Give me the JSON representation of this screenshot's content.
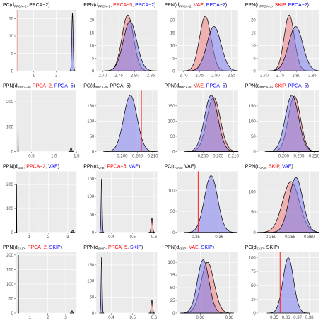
{
  "colors": {
    "panel_bg": "#ebebeb",
    "grid_major": "#ffffff",
    "grid_minor": "#f3f3f3",
    "red_fill": "#f08080",
    "blue_fill": "#8080f0",
    "purple_fill": "#8a4aa6",
    "red_line": "#ff2020",
    "red_text": "#ff0000",
    "blue_text": "#0000ff",
    "curve": "#000000"
  },
  "panels": [
    {
      "title": [
        [
          "PC(d",
          "#000"
        ],
        [
          "PPCA−2",
          "#000",
          "sub"
        ],
        [
          ", PPCA−2)",
          "#000"
        ]
      ],
      "type": "pc",
      "xlim": [
        0.2,
        2.9
      ],
      "ylim": [
        0,
        17.5
      ],
      "xticks": [
        1,
        2
      ],
      "yticks": [
        0,
        5,
        10,
        15
      ],
      "obs": 0.3,
      "a": {
        "mean": 2.72,
        "sd": 0.03,
        "peak": 16.5
      }
    },
    {
      "title": [
        [
          "PPN(d",
          "#000"
        ],
        [
          "PPCA−2",
          "#000",
          "sub"
        ],
        [
          ", ",
          "#000"
        ],
        [
          "PPCA−5",
          "#ff0000"
        ],
        [
          ", ",
          "#000"
        ],
        [
          "PPCA−2",
          "#0000ff"
        ],
        [
          ")",
          "#000"
        ]
      ],
      "type": "ppn",
      "xlim": [
        2.68,
        2.87
      ],
      "ylim": [
        0,
        24
      ],
      "xticks": [
        2.7,
        2.75,
        2.8,
        2.85
      ],
      "xfmt": 2,
      "yticks": [
        0,
        5,
        10,
        15,
        20
      ],
      "a": {
        "mean": 2.778,
        "sd": 0.018,
        "peak": 22
      },
      "b": {
        "mean": 2.785,
        "sd": 0.021,
        "peak": 19.5
      }
    },
    {
      "title": [
        [
          "PPN(d",
          "#000"
        ],
        [
          "PPCA−2",
          "#000",
          "sub"
        ],
        [
          ", ",
          "#000"
        ],
        [
          "VAE",
          "#ff0000"
        ],
        [
          ", ",
          "#000"
        ],
        [
          "PPCA−2",
          "#0000ff"
        ],
        [
          ")",
          "#000"
        ]
      ],
      "type": "ppn",
      "xlim": [
        2.68,
        2.87
      ],
      "ylim": [
        0,
        24
      ],
      "xticks": [
        2.7,
        2.75,
        2.8,
        2.85
      ],
      "xfmt": 2,
      "yticks": [
        0,
        5,
        10,
        15,
        20
      ],
      "a": {
        "mean": 2.768,
        "sd": 0.018,
        "peak": 21.5
      },
      "b": {
        "mean": 2.795,
        "sd": 0.022,
        "peak": 17.5
      }
    },
    {
      "title": [
        [
          "PPN(d",
          "#000"
        ],
        [
          "PPCA−2",
          "#000",
          "sub"
        ],
        [
          ", ",
          "#000"
        ],
        [
          "SKIP",
          "#ff0000"
        ],
        [
          ", ",
          "#000"
        ],
        [
          "PPCA−2",
          "#0000ff"
        ],
        [
          ")",
          "#000"
        ]
      ],
      "type": "ppn",
      "xlim": [
        2.68,
        2.87
      ],
      "ylim": [
        0,
        24
      ],
      "xticks": [
        2.7,
        2.75,
        2.8,
        2.85
      ],
      "xfmt": 2,
      "yticks": [
        0,
        5,
        10,
        15,
        20
      ],
      "a": {
        "mean": 2.778,
        "sd": 0.016,
        "peak": 22
      },
      "b": {
        "mean": 2.798,
        "sd": 0.022,
        "peak": 17.5
      }
    },
    {
      "title": [
        [
          "PPN(d",
          "#000"
        ],
        [
          "PPCA−5",
          "#000",
          "sub"
        ],
        [
          ", ",
          "#000"
        ],
        [
          "PPCA−2",
          "#ff0000"
        ],
        [
          ", ",
          "#000"
        ],
        [
          "PPCA−5",
          "#0000ff"
        ],
        [
          ")",
          "#000"
        ]
      ],
      "type": "ppn",
      "xlim": [
        0.15,
        1.5
      ],
      "ylim": [
        0,
        245
      ],
      "xticks": [
        0.5,
        1.0,
        1.5
      ],
      "xfmt": 1,
      "yticks": [
        0,
        100,
        200
      ],
      "a": {
        "mean": 1.38,
        "sd": 0.015,
        "peak": 16
      },
      "b": {
        "mean": 0.205,
        "sd": 0.002,
        "peak": 200
      }
    },
    {
      "title": [
        [
          "PC(d",
          "#000"
        ],
        [
          "PPCA−5",
          "#000",
          "sub"
        ],
        [
          ", PPCA−5)",
          "#000"
        ]
      ],
      "type": "pc",
      "xlim": [
        0.1915,
        0.2115
      ],
      "ylim": [
        0,
        200
      ],
      "xticks": [
        0.2,
        0.205,
        0.21
      ],
      "xfmt": 3,
      "yticks": [
        0,
        50,
        100,
        150
      ],
      "obs": 0.2063,
      "a": {
        "mean": 0.2027,
        "sd": 0.0022,
        "peak": 185
      }
    },
    {
      "title": [
        [
          "PPN(d",
          "#000"
        ],
        [
          "PPCA−5",
          "#000",
          "sub"
        ],
        [
          ", ",
          "#000"
        ],
        [
          "VAE",
          "#ff0000"
        ],
        [
          ", ",
          "#000"
        ],
        [
          "PPCA−5",
          "#0000ff"
        ],
        [
          ")",
          "#000"
        ]
      ],
      "type": "ppn",
      "xlim": [
        0.1915,
        0.2115
      ],
      "ylim": [
        0,
        200
      ],
      "xticks": [
        0.2,
        0.205,
        0.21
      ],
      "xfmt": 3,
      "yticks": [
        0,
        50,
        100,
        150
      ],
      "a": {
        "mean": 0.2035,
        "sd": 0.0022,
        "peak": 178
      },
      "b": {
        "mean": 0.2027,
        "sd": 0.0022,
        "peak": 185
      }
    },
    {
      "title": [
        [
          "PPN(d",
          "#000"
        ],
        [
          "PPCA−5",
          "#000",
          "sub"
        ],
        [
          ", ",
          "#000"
        ],
        [
          "SKIP",
          "#ff0000"
        ],
        [
          ", ",
          "#000"
        ],
        [
          "PPCA−5",
          "#0000ff"
        ],
        [
          ")",
          "#000"
        ]
      ],
      "type": "ppn",
      "xlim": [
        0.1915,
        0.2115
      ],
      "ylim": [
        0,
        200
      ],
      "xticks": [
        0.2,
        0.205,
        0.21
      ],
      "xfmt": 3,
      "yticks": [
        0,
        50,
        100,
        150
      ],
      "a": {
        "mean": 0.2035,
        "sd": 0.002,
        "peak": 182
      },
      "b": {
        "mean": 0.2027,
        "sd": 0.0022,
        "peak": 185
      }
    },
    {
      "title": [
        [
          "PPN(d",
          "#000"
        ],
        [
          "VAE",
          "#000",
          "sub"
        ],
        [
          ", ",
          "#000"
        ],
        [
          "PPCA−2",
          "#ff0000"
        ],
        [
          ", ",
          "#000"
        ],
        [
          "VAE",
          "#0000ff"
        ],
        [
          ")",
          "#000"
        ]
      ],
      "type": "ppn",
      "xlim": [
        0.3,
        3.45
      ],
      "ylim": [
        0,
        255
      ],
      "xticks": [
        1,
        2,
        3
      ],
      "yticks": [
        0,
        100,
        200
      ],
      "a": {
        "mean": 3.25,
        "sd": 0.03,
        "peak": 8
      },
      "b": {
        "mean": 0.355,
        "sd": 0.003,
        "peak": 200
      }
    },
    {
      "title": [
        [
          "PPN(d",
          "#000"
        ],
        [
          "VAE",
          "#000",
          "sub"
        ],
        [
          ", ",
          "#000"
        ],
        [
          "PPCA−5",
          "#ff0000"
        ],
        [
          ", ",
          "#000"
        ],
        [
          "VAE",
          "#0000ff"
        ],
        [
          ")",
          "#000"
        ]
      ],
      "type": "ppn",
      "xlim": [
        0.33,
        0.615
      ],
      "ylim": [
        0,
        170
      ],
      "xticks": [
        0.4,
        0.5,
        0.6
      ],
      "xfmt": 1,
      "yticks": [
        0,
        50,
        100,
        150
      ],
      "a": {
        "mean": 0.59,
        "sd": 0.0035,
        "peak": 40
      },
      "b": {
        "mean": 0.355,
        "sd": 0.0025,
        "peak": 150
      }
    },
    {
      "title": [
        [
          "PC(d",
          "#000"
        ],
        [
          "VAE",
          "#000",
          "sub"
        ],
        [
          ", VAE)",
          "#000"
        ]
      ],
      "type": "pc",
      "xlim": [
        0.342,
        0.368
      ],
      "ylim": [
        0,
        145
      ],
      "xticks": [
        0.35,
        0.36
      ],
      "xfmt": 2,
      "yticks": [
        0,
        50,
        100
      ],
      "obs": 0.351,
      "a": {
        "mean": 0.3565,
        "sd": 0.0028,
        "peak": 135
      }
    },
    {
      "title": [
        [
          "PPN(d",
          "#000"
        ],
        [
          "VAE",
          "#000",
          "sub"
        ],
        [
          ", ",
          "#000"
        ],
        [
          "SKIP",
          "#ff0000"
        ],
        [
          ", ",
          "#000"
        ],
        [
          "VAE",
          "#0000ff"
        ],
        [
          ")",
          "#000"
        ]
      ],
      "type": "ppn",
      "xlim": [
        0.3465,
        0.3625
      ],
      "ylim": [
        0,
        150
      ],
      "xticks": [
        0.35,
        0.355,
        0.36
      ],
      "xfmt": 3,
      "yticks": [
        0,
        50,
        100
      ],
      "a": {
        "mean": 0.3552,
        "sd": 0.0022,
        "peak": 125
      },
      "b": {
        "mean": 0.3565,
        "sd": 0.0018,
        "peak": 135
      }
    },
    {
      "title": [
        [
          "PPN(d",
          "#000"
        ],
        [
          "SKIP",
          "#000",
          "sub"
        ],
        [
          ", ",
          "#000"
        ],
        [
          "PPCA−2",
          "#ff0000"
        ],
        [
          ", ",
          "#000"
        ],
        [
          "SKIP",
          "#0000ff"
        ],
        [
          ")",
          "#000"
        ]
      ],
      "type": "ppn",
      "xlim": [
        0.2,
        3.6
      ],
      "ylim": [
        0,
        210
      ],
      "xticks": [
        1,
        2,
        3
      ],
      "yticks": [
        0,
        50,
        100,
        150,
        200
      ],
      "a": {
        "mean": 3.35,
        "sd": 0.03,
        "peak": 8
      },
      "b": {
        "mean": 0.36,
        "sd": 0.003,
        "peak": 200
      }
    },
    {
      "title": [
        [
          "PPN(d",
          "#000"
        ],
        [
          "SKIP",
          "#000",
          "sub"
        ],
        [
          ", ",
          "#000"
        ],
        [
          "PPCA−5",
          "#ff0000"
        ],
        [
          ", ",
          "#000"
        ],
        [
          "SKIP",
          "#0000ff"
        ],
        [
          ")",
          "#000"
        ]
      ],
      "type": "ppn",
      "xlim": [
        0.33,
        0.615
      ],
      "ylim": [
        0,
        190
      ],
      "xticks": [
        0.4,
        0.5,
        0.6
      ],
      "xfmt": 1,
      "yticks": [
        0,
        50,
        100,
        150
      ],
      "a": {
        "mean": 0.59,
        "sd": 0.0035,
        "peak": 40
      },
      "b": {
        "mean": 0.355,
        "sd": 0.0025,
        "peak": 175
      }
    },
    {
      "title": [
        [
          "PPN(d",
          "#000"
        ],
        [
          "SKIP",
          "#000",
          "sub"
        ],
        [
          ", ",
          "#000"
        ],
        [
          "VAE",
          "#ff0000"
        ],
        [
          ", ",
          "#000"
        ],
        [
          "SKIP",
          "#0000ff"
        ],
        [
          ")",
          "#000"
        ]
      ],
      "type": "ppn",
      "xlim": [
        0.344,
        0.386
      ],
      "ylim": [
        0,
        120
      ],
      "xticks": [
        0.36,
        0.38
      ],
      "xfmt": 2,
      "yticks": [
        0,
        25,
        50,
        75,
        100
      ],
      "a": {
        "mean": 0.365,
        "sd": 0.0045,
        "peak": 100
      },
      "b": {
        "mean": 0.362,
        "sd": 0.004,
        "peak": 105
      }
    },
    {
      "title": [
        [
          "PC(d",
          "#000"
        ],
        [
          "SKIP",
          "#000",
          "sub"
        ],
        [
          ", SKIP)",
          "#000"
        ]
      ],
      "type": "pc",
      "xlim": [
        0.336,
        0.388
      ],
      "ylim": [
        0,
        110
      ],
      "xticks": [
        0.35,
        0.36,
        0.37,
        0.38
      ],
      "xfmt": 2,
      "yticks": [
        0,
        25,
        50,
        75,
        100
      ],
      "obs": 0.355,
      "a": {
        "mean": 0.362,
        "sd": 0.0045,
        "peak": 100
      }
    }
  ],
  "chart_data": [
    {
      "type": "area",
      "title": "PC(d_PPCA−2, PPCA−2)",
      "observed_x": 0.3,
      "series": [
        {
          "kind": "density",
          "mean": 2.72,
          "sd": 0.03,
          "peak": 16.5
        }
      ],
      "xlim": [
        0.2,
        2.9
      ],
      "ylim": [
        0,
        17.5
      ]
    },
    {
      "type": "area",
      "title": "PPN(d_PPCA−2, PPCA−5, PPCA−2)",
      "series": [
        {
          "name": "PPCA−5",
          "mean": 2.778,
          "sd": 0.018,
          "peak": 22
        },
        {
          "name": "PPCA−2",
          "mean": 2.785,
          "sd": 0.021,
          "peak": 19.5
        }
      ],
      "xlim": [
        2.68,
        2.87
      ]
    },
    {
      "type": "area",
      "title": "PPN(d_PPCA−2, VAE, PPCA−2)",
      "series": [
        {
          "name": "VAE",
          "mean": 2.768,
          "sd": 0.018,
          "peak": 21.5
        },
        {
          "name": "PPCA−2",
          "mean": 2.795,
          "sd": 0.022,
          "peak": 17.5
        }
      ],
      "xlim": [
        2.68,
        2.87
      ]
    },
    {
      "type": "area",
      "title": "PPN(d_PPCA−2, SKIP, PPCA−2)",
      "series": [
        {
          "name": "SKIP",
          "mean": 2.778,
          "sd": 0.016,
          "peak": 22
        },
        {
          "name": "PPCA−2",
          "mean": 2.798,
          "sd": 0.022,
          "peak": 17.5
        }
      ],
      "xlim": [
        2.68,
        2.87
      ]
    },
    {
      "type": "area",
      "title": "PPN(d_PPCA−5, PPCA−2, PPCA−5)",
      "series": [
        {
          "name": "PPCA−2",
          "mean": 1.38,
          "peak": 16
        },
        {
          "name": "PPCA−5",
          "mean": 0.205,
          "peak": 200
        }
      ],
      "xlim": [
        0.15,
        1.5
      ]
    },
    {
      "type": "area",
      "title": "PC(d_PPCA−5, PPCA−5)",
      "observed_x": 0.2063,
      "series": [
        {
          "kind": "density",
          "mean": 0.2027,
          "sd": 0.0022,
          "peak": 185
        }
      ],
      "xlim": [
        0.1915,
        0.2115
      ]
    },
    {
      "type": "area",
      "title": "PPN(d_PPCA−5, VAE, PPCA−5)",
      "series": [
        {
          "name": "VAE",
          "mean": 0.2035,
          "peak": 178
        },
        {
          "name": "PPCA−5",
          "mean": 0.2027,
          "peak": 185
        }
      ]
    },
    {
      "type": "area",
      "title": "PPN(d_PPCA−5, SKIP, PPCA−5)",
      "series": [
        {
          "name": "SKIP",
          "mean": 0.2035,
          "peak": 182
        },
        {
          "name": "PPCA−5",
          "mean": 0.2027,
          "peak": 185
        }
      ]
    },
    {
      "type": "area",
      "title": "PPN(d_VAE, PPCA−2, VAE)",
      "series": [
        {
          "name": "PPCA−2",
          "mean": 3.25,
          "peak": 8
        },
        {
          "name": "VAE",
          "mean": 0.355,
          "peak": 200
        }
      ]
    },
    {
      "type": "area",
      "title": "PPN(d_VAE, PPCA−5, VAE)",
      "series": [
        {
          "name": "PPCA−5",
          "mean": 0.59,
          "peak": 40
        },
        {
          "name": "VAE",
          "mean": 0.355,
          "peak": 150
        }
      ]
    },
    {
      "type": "area",
      "title": "PC(d_VAE, VAE)",
      "observed_x": 0.351,
      "series": [
        {
          "kind": "density",
          "mean": 0.3565,
          "peak": 135
        }
      ]
    },
    {
      "type": "area",
      "title": "PPN(d_VAE, SKIP, VAE)",
      "series": [
        {
          "name": "SKIP",
          "mean": 0.3552,
          "peak": 125
        },
        {
          "name": "VAE",
          "mean": 0.3565,
          "peak": 135
        }
      ]
    },
    {
      "type": "area",
      "title": "PPN(d_SKIP, PPCA−2, SKIP)",
      "series": [
        {
          "name": "PPCA−2",
          "mean": 3.35,
          "peak": 8
        },
        {
          "name": "SKIP",
          "mean": 0.36,
          "peak": 200
        }
      ]
    },
    {
      "type": "area",
      "title": "PPN(d_SKIP, PPCA−5, SKIP)",
      "series": [
        {
          "name": "PPCA−5",
          "mean": 0.59,
          "peak": 40
        },
        {
          "name": "SKIP",
          "mean": 0.355,
          "peak": 175
        }
      ]
    },
    {
      "type": "area",
      "title": "PPN(d_SKIP, VAE, SKIP)",
      "series": [
        {
          "name": "VAE",
          "mean": 0.365,
          "peak": 100
        },
        {
          "name": "SKIP",
          "mean": 0.362,
          "peak": 105
        }
      ]
    },
    {
      "type": "area",
      "title": "PC(d_SKIP, SKIP)",
      "observed_x": 0.355,
      "series": [
        {
          "kind": "density",
          "mean": 0.362,
          "peak": 100
        }
      ]
    }
  ]
}
